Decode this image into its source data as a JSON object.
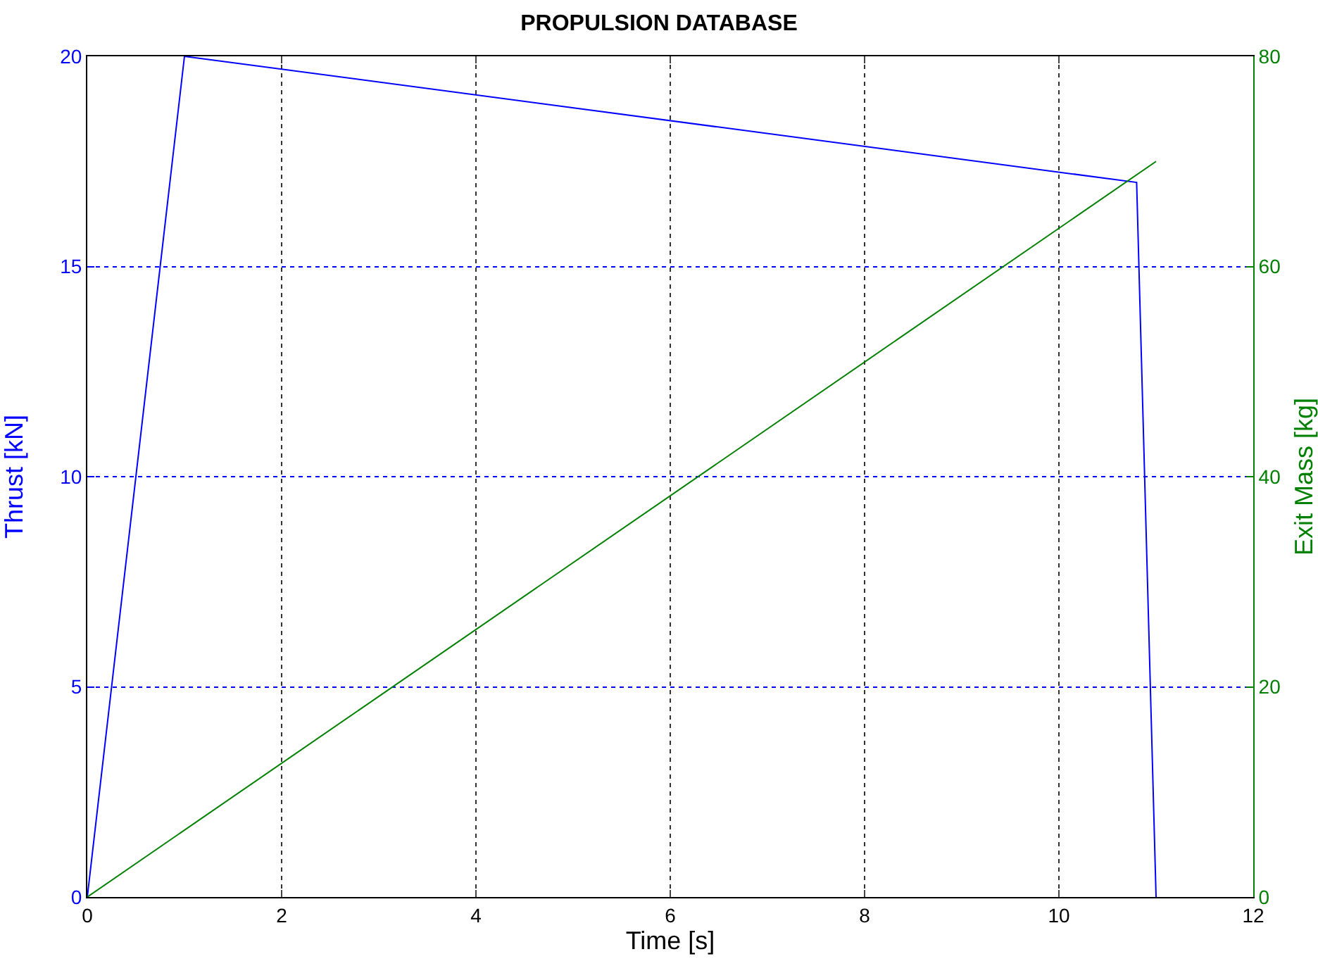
{
  "chart_data": {
    "type": "line",
    "title": "PROPULSION DATABASE",
    "xlabel": "Time [s]",
    "ylabel": "Thrust [kN]",
    "y2label": "Exit Mass [kg]",
    "xlim": [
      0,
      12
    ],
    "xticks": [
      0,
      2,
      4,
      6,
      8,
      10,
      12
    ],
    "ylim": [
      0,
      20
    ],
    "yticks": [
      0,
      5,
      10,
      15,
      20
    ],
    "y2lim": [
      0,
      80
    ],
    "y2ticks": [
      0,
      20,
      40,
      60,
      80
    ],
    "grid": true,
    "marker": "none",
    "line_style": "solid",
    "series": [
      {
        "color": "#0000ff",
        "x": [
          0,
          1,
          10.8,
          11
        ],
        "values": [
          0,
          20,
          17,
          0
        ]
      },
      {
        "color": "#008000",
        "axis": "y2",
        "x": [
          0,
          11
        ],
        "values": [
          0,
          70
        ]
      }
    ]
  }
}
